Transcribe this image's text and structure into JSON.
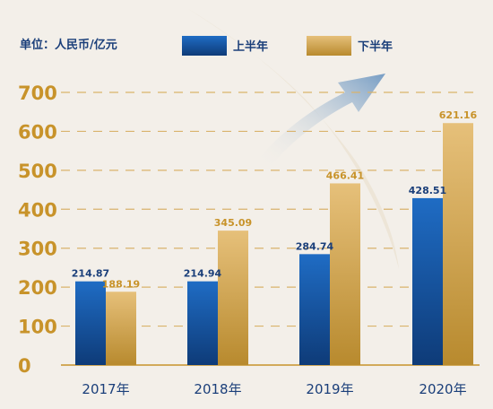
{
  "unit_label": "单位：人民币/亿元",
  "colors": {
    "background": "#f3efe9",
    "series_1": "#1a5fb4",
    "series_1_dark": "#0e3b78",
    "series_2": "#e0b462",
    "series_2_dark": "#b88a2e",
    "axis_text": "#c8932a",
    "label_1": "#1b3f7a",
    "label_2": "#c8932a",
    "grid": "#d9b36c",
    "arrow": "#8fb1cf"
  },
  "chart_data": {
    "type": "bar",
    "categories": [
      "2017年",
      "2018年",
      "2019年",
      "2020年"
    ],
    "series": [
      {
        "name": "上半年",
        "values": [
          214.87,
          214.94,
          284.74,
          428.51
        ]
      },
      {
        "name": "下半年",
        "values": [
          188.19,
          345.09,
          466.41,
          621.16
        ]
      }
    ],
    "value_labels": [
      [
        "214.87",
        "214.94",
        "284.74",
        "428.51"
      ],
      [
        "188.19",
        "345.09",
        "466.41",
        "621.16"
      ]
    ],
    "yticks": [
      "0",
      "100",
      "200",
      "300",
      "400",
      "500",
      "600",
      "700"
    ],
    "ylim": [
      0,
      700
    ],
    "grid": true,
    "legend_position": "top"
  }
}
